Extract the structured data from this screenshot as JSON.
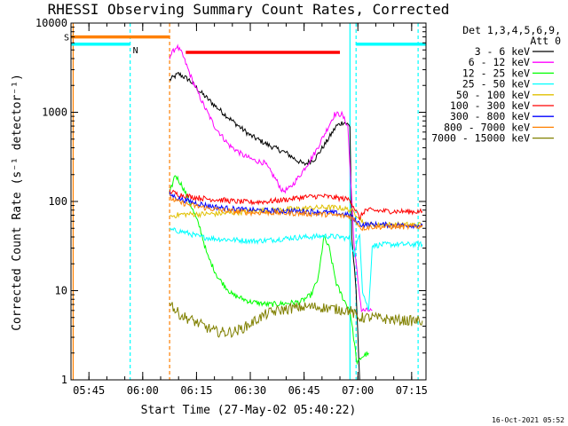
{
  "chart_data": {
    "type": "line",
    "title": "RHESSI Observing Summary Count Rates, Corrected",
    "xlabel": "Start Time (27-May-02 05:40:22)",
    "ylabel": "Corrected Count Rate (s⁻¹ detector⁻¹)",
    "y_scale": "log",
    "ylim": [
      1,
      10000
    ],
    "xlim": [
      0,
      99
    ],
    "x_ticks": [
      {
        "t": 5,
        "label": "05:45"
      },
      {
        "t": 20,
        "label": "06:00"
      },
      {
        "t": 35,
        "label": "06:15"
      },
      {
        "t": 50,
        "label": "06:30"
      },
      {
        "t": 65,
        "label": "06:45"
      },
      {
        "t": 80,
        "label": "07:00"
      },
      {
        "t": 95,
        "label": "07:15"
      }
    ],
    "y_ticks": [
      {
        "v": 1,
        "label": "1"
      },
      {
        "v": 10,
        "label": "10"
      },
      {
        "v": 100,
        "label": "100"
      },
      {
        "v": 1000,
        "label": "1000"
      },
      {
        "v": 10000,
        "label": "10000"
      }
    ],
    "legend_header": [
      "Det 1,3,4,5,6,9,",
      "Att 0"
    ],
    "legend_position": "right",
    "timestamp": "16-Oct-2021 05:52",
    "flags": [
      {
        "letter": "S",
        "color": "#ff8000",
        "level": 7000,
        "segments": [
          [
            0,
            27.5
          ]
        ]
      },
      {
        "letter": "N",
        "color": "#00ffff",
        "level": 5800,
        "segments": [
          [
            0,
            16.5
          ],
          [
            79.5,
            99
          ]
        ]
      },
      {
        "letter": "",
        "color": "#ff0000",
        "level": 4700,
        "segments": [
          [
            32,
            75
          ]
        ]
      }
    ],
    "vlines": [
      {
        "t": 0.6,
        "color": "#ff8000",
        "dash": false
      },
      {
        "t": 16.5,
        "color": "#00ffff",
        "dash": true
      },
      {
        "t": 27.5,
        "color": "#ff8000",
        "dash": true
      },
      {
        "t": 77.8,
        "color": "#00ffff",
        "dash": false
      },
      {
        "t": 79.5,
        "color": "#00ffff",
        "dash": true
      },
      {
        "t": 96.8,
        "color": "#00ffff",
        "dash": true
      }
    ],
    "series": [
      {
        "name": "3 - 6 keV",
        "color": "#000000",
        "points": [
          [
            27.5,
            2300
          ],
          [
            30,
            2700
          ],
          [
            33,
            2300
          ],
          [
            36,
            1700
          ],
          [
            40,
            1200
          ],
          [
            45,
            800
          ],
          [
            50,
            550
          ],
          [
            55,
            430
          ],
          [
            60,
            350
          ],
          [
            63,
            290
          ],
          [
            65,
            260
          ],
          [
            68,
            300
          ],
          [
            71,
            450
          ],
          [
            74,
            700
          ],
          [
            76,
            780
          ],
          [
            77.8,
            700
          ],
          [
            78.3,
            40
          ],
          [
            79.5,
            10
          ],
          [
            80.5,
            1
          ]
        ]
      },
      {
        "name": "6 - 12 keV",
        "color": "#ff00ff",
        "points": [
          [
            27.5,
            4200
          ],
          [
            29.5,
            5500
          ],
          [
            31,
            4500
          ],
          [
            34,
            2200
          ],
          [
            37,
            1200
          ],
          [
            40,
            700
          ],
          [
            44,
            430
          ],
          [
            48,
            330
          ],
          [
            51,
            290
          ],
          [
            54,
            270
          ],
          [
            57,
            180
          ],
          [
            59,
            130
          ],
          [
            61,
            140
          ],
          [
            64,
            200
          ],
          [
            68,
            350
          ],
          [
            71,
            600
          ],
          [
            73.5,
            950
          ],
          [
            75.5,
            950
          ],
          [
            77.2,
            700
          ],
          [
            77.8,
            250
          ],
          [
            79,
            30
          ],
          [
            81,
            6
          ],
          [
            84,
            6
          ]
        ]
      },
      {
        "name": "12 - 25 keV",
        "color": "#00ff00",
        "points": [
          [
            27.5,
            120
          ],
          [
            29,
            200
          ],
          [
            31,
            150
          ],
          [
            33,
            100
          ],
          [
            36,
            50
          ],
          [
            38,
            25
          ],
          [
            41,
            14
          ],
          [
            45,
            9
          ],
          [
            50,
            7.5
          ],
          [
            55,
            7
          ],
          [
            60,
            7.2
          ],
          [
            64,
            7.5
          ],
          [
            67,
            9
          ],
          [
            69,
            14
          ],
          [
            70.5,
            40
          ],
          [
            72,
            30
          ],
          [
            74,
            12
          ],
          [
            76,
            8
          ],
          [
            77.8,
            6
          ],
          [
            78.8,
            3
          ],
          [
            79.8,
            1.5
          ],
          [
            81,
            1.8
          ],
          [
            83,
            2
          ]
        ]
      },
      {
        "name": "25 - 50 keV",
        "color": "#00ffff",
        "points": [
          [
            27.5,
            48
          ],
          [
            31,
            46
          ],
          [
            36,
            40
          ],
          [
            41,
            38
          ],
          [
            46,
            37
          ],
          [
            51,
            36
          ],
          [
            56,
            37
          ],
          [
            61,
            39
          ],
          [
            66,
            40
          ],
          [
            71,
            41
          ],
          [
            75,
            40
          ],
          [
            77.8,
            38
          ],
          [
            79,
            25
          ],
          [
            80.5,
            45
          ],
          [
            81.3,
            10
          ],
          [
            83,
            6
          ],
          [
            84,
            32
          ],
          [
            88,
            33
          ],
          [
            94,
            33
          ],
          [
            98,
            33
          ]
        ]
      },
      {
        "name": "50 - 100 keV",
        "color": "#e0c000",
        "points": [
          [
            27.5,
            68
          ],
          [
            31,
            72
          ],
          [
            36,
            72
          ],
          [
            41,
            73
          ],
          [
            46,
            75
          ],
          [
            51,
            78
          ],
          [
            56,
            80
          ],
          [
            61,
            82
          ],
          [
            66,
            84
          ],
          [
            71,
            86
          ],
          [
            75,
            85
          ],
          [
            78,
            80
          ],
          [
            80,
            70
          ],
          [
            82,
            55
          ],
          [
            86,
            55
          ],
          [
            92,
            55
          ],
          [
            98,
            55
          ]
        ]
      },
      {
        "name": "100 - 300 keV",
        "color": "#ff0000",
        "points": [
          [
            27.5,
            130
          ],
          [
            30,
            120
          ],
          [
            34,
            112
          ],
          [
            38,
            107
          ],
          [
            42,
            104
          ],
          [
            46,
            100
          ],
          [
            50,
            98
          ],
          [
            55,
            100
          ],
          [
            60,
            105
          ],
          [
            65,
            112
          ],
          [
            70,
            115
          ],
          [
            74,
            110
          ],
          [
            77.8,
            105
          ],
          [
            79,
            85
          ],
          [
            80.5,
            65
          ],
          [
            82,
            80
          ],
          [
            88,
            78
          ],
          [
            94,
            77
          ],
          [
            98,
            77
          ]
        ]
      },
      {
        "name": "300 - 800 keV",
        "color": "#0000ff",
        "points": [
          [
            27.5,
            120
          ],
          [
            30,
            108
          ],
          [
            34,
            98
          ],
          [
            38,
            90
          ],
          [
            42,
            85
          ],
          [
            46,
            82
          ],
          [
            50,
            80
          ],
          [
            55,
            79
          ],
          [
            60,
            78
          ],
          [
            65,
            78
          ],
          [
            70,
            76
          ],
          [
            74,
            74
          ],
          [
            77.8,
            70
          ],
          [
            79,
            62
          ],
          [
            81,
            55
          ],
          [
            86,
            55
          ],
          [
            92,
            54
          ],
          [
            98,
            54
          ]
        ]
      },
      {
        "name": "800 - 7000 keV",
        "color": "#ff8000",
        "points": [
          [
            27.5,
            110
          ],
          [
            30,
            98
          ],
          [
            34,
            90
          ],
          [
            38,
            84
          ],
          [
            42,
            80
          ],
          [
            46,
            77
          ],
          [
            50,
            75
          ],
          [
            55,
            75
          ],
          [
            60,
            74
          ],
          [
            65,
            73
          ],
          [
            70,
            72
          ],
          [
            74,
            70
          ],
          [
            77.8,
            68
          ],
          [
            79.5,
            60
          ],
          [
            81,
            50
          ],
          [
            84,
            52
          ],
          [
            88,
            52
          ],
          [
            94,
            52
          ],
          [
            98,
            52
          ]
        ]
      },
      {
        "name": "7000 - 15000 keV",
        "color": "#808000",
        "points": [
          [
            27.5,
            8
          ],
          [
            29,
            6
          ],
          [
            31,
            5.2
          ],
          [
            34,
            4.6
          ],
          [
            37,
            4
          ],
          [
            40,
            3.5
          ],
          [
            43,
            3.4
          ],
          [
            46,
            3.5
          ],
          [
            49,
            4
          ],
          [
            52,
            4.8
          ],
          [
            55,
            5.6
          ],
          [
            58,
            6
          ],
          [
            61,
            6.3
          ],
          [
            64,
            6.5
          ],
          [
            67,
            6.6
          ],
          [
            70,
            6.5
          ],
          [
            74,
            6.2
          ],
          [
            77.8,
            6
          ],
          [
            80,
            5
          ],
          [
            84,
            5
          ],
          [
            88,
            4.8
          ],
          [
            94,
            4.6
          ],
          [
            98,
            4.6
          ]
        ]
      }
    ]
  }
}
